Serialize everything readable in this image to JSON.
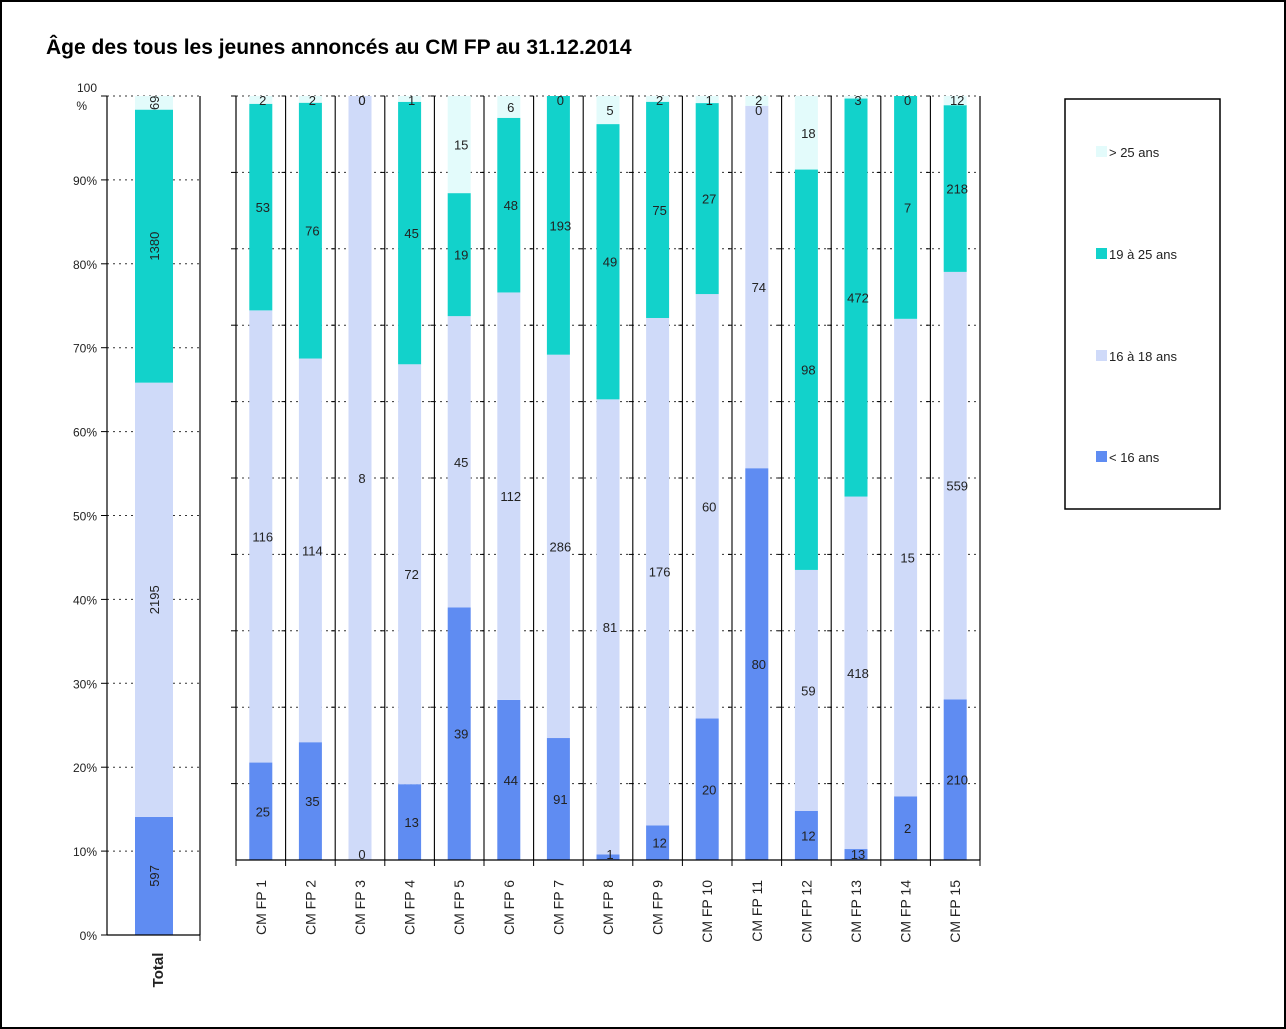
{
  "chart_data": {
    "type": "stacked-bar-100",
    "title": "Âge des tous les jeunes annoncés au CM FP au 31.12.2014",
    "y_ticks": [
      "0%",
      "10%",
      "20%",
      "30%",
      "40%",
      "50%",
      "60%",
      "70%",
      "80%",
      "90%",
      "100\n%"
    ],
    "ylim": [
      0,
      100
    ],
    "legend_placement": "right",
    "series": [
      {
        "name": "< 16 ans",
        "color": "#5f8cf2"
      },
      {
        "name": "16 à 18 ans",
        "color": "#cfdaf9"
      },
      {
        "name": "19 à 25 ans",
        "color": "#12d2cb"
      },
      {
        "name": "> 25 ans",
        "color": "#e3fbfb"
      }
    ],
    "legend_order": [
      "> 25 ans",
      "19 à 25 ans",
      "16 à 18 ans",
      "< 16 ans"
    ],
    "total_chart": {
      "category": "Total",
      "values": [
        597,
        2195,
        1380,
        69
      ],
      "labels": [
        "597",
        "2195",
        "1380",
        "69"
      ]
    },
    "main_chart": {
      "categories": [
        "CM FP 1",
        "CM FP 2",
        "CM FP 3",
        "CM FP 4",
        "CM FP 5",
        "CM FP 6",
        "CM FP 7",
        "CM FP 8",
        "CM FP 9",
        "CM FP 10",
        "CM FP 11",
        "CM FP 12",
        "CM FP 13",
        "CM FP 14",
        "CM FP 15"
      ],
      "values": [
        [
          25,
          116,
          53,
          2
        ],
        [
          35,
          114,
          76,
          2
        ],
        [
          0,
          8,
          0,
          0
        ],
        [
          13,
          72,
          45,
          1
        ],
        [
          39,
          45,
          19,
          15
        ],
        [
          44,
          112,
          48,
          6
        ],
        [
          91,
          286,
          193,
          0
        ],
        [
          1,
          81,
          49,
          5
        ],
        [
          12,
          176,
          75,
          2
        ],
        [
          20,
          60,
          27,
          1
        ],
        [
          80,
          74,
          0,
          2
        ],
        [
          12,
          59,
          98,
          18
        ],
        [
          13,
          418,
          472,
          3
        ],
        [
          2,
          15,
          7,
          0
        ],
        [
          210,
          559,
          218,
          12
        ]
      ],
      "labels": [
        [
          "25",
          "116",
          "53",
          "2"
        ],
        [
          "35",
          "114",
          "76",
          "2"
        ],
        [
          "0",
          "8",
          "0",
          "0"
        ],
        [
          "13",
          "72",
          "45",
          "1"
        ],
        [
          "39",
          "45",
          "19",
          "15"
        ],
        [
          "44",
          "112",
          "48",
          "6"
        ],
        [
          "91",
          "286",
          "193",
          "0"
        ],
        [
          "1",
          "81",
          "49",
          "5"
        ],
        [
          "12",
          "176",
          "75",
          "2"
        ],
        [
          "20",
          "60",
          "27",
          "1"
        ],
        [
          "80",
          "74",
          "0",
          "2"
        ],
        [
          "12",
          "59",
          "98",
          "18"
        ],
        [
          "13",
          "418",
          "472",
          "3"
        ],
        [
          "2",
          "15",
          "7",
          "0"
        ],
        [
          "210",
          "559",
          "218",
          "12"
        ]
      ]
    }
  }
}
